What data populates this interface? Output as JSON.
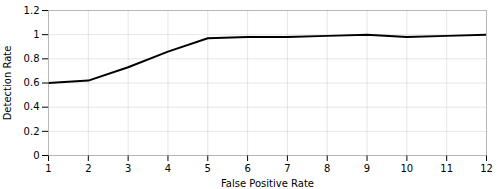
{
  "chart_data": {
    "type": "line",
    "x": [
      1,
      2,
      3,
      4,
      5,
      6,
      7,
      8,
      9,
      10,
      11,
      12
    ],
    "values": [
      0.6,
      0.62,
      0.73,
      0.86,
      0.97,
      0.98,
      0.98,
      0.99,
      1.0,
      0.98,
      0.99,
      1.0
    ],
    "xlabel": "False Positive Rate",
    "ylabel": "Detection Rate",
    "xlim": [
      1,
      12
    ],
    "ylim": [
      0,
      1.2
    ],
    "xticks": [
      1,
      2,
      3,
      4,
      5,
      6,
      7,
      8,
      9,
      10,
      11,
      12
    ],
    "yticks": [
      0,
      0.2,
      0.4,
      0.6,
      0.8,
      1,
      1.2
    ],
    "grid": true
  }
}
